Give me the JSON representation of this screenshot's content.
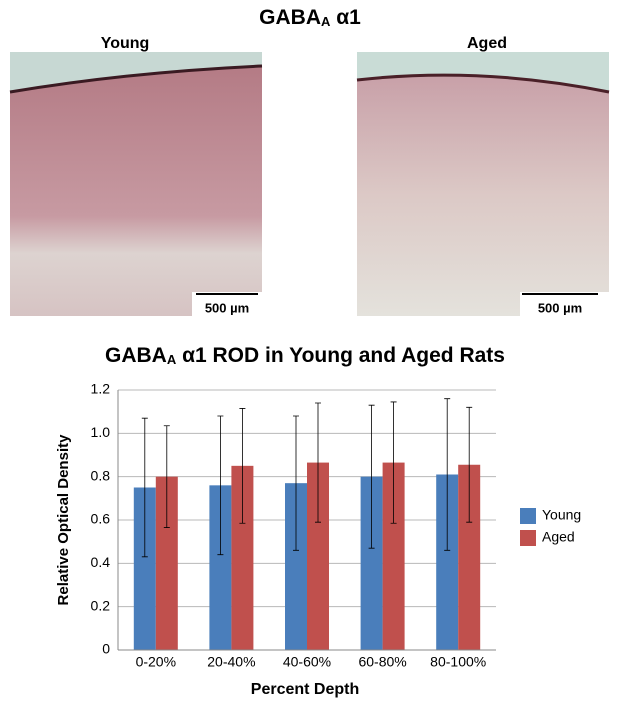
{
  "figure": {
    "title": {
      "main": "GABA",
      "sub": "A",
      "rest": "α1"
    },
    "panels": [
      {
        "label": "Young",
        "scale_bar": "500 µm"
      },
      {
        "label": "Aged",
        "scale_bar": "500 µm"
      }
    ]
  },
  "chart_data": {
    "type": "bar",
    "title": {
      "main": "GABA",
      "sub": "A",
      "rest": "α1 ROD in Young and Aged Rats"
    },
    "x_label": "Percent Depth",
    "y_label": "Relative Optical Density",
    "categories": [
      "0-20%",
      "20-40%",
      "40-60%",
      "60-80%",
      "80-100%"
    ],
    "series": [
      {
        "name": "Young",
        "color": "#4a7ebb",
        "values": [
          0.75,
          0.76,
          0.77,
          0.8,
          0.81
        ],
        "errors": [
          0.32,
          0.32,
          0.31,
          0.33,
          0.35
        ]
      },
      {
        "name": "Aged",
        "color": "#c0504d",
        "values": [
          0.8,
          0.85,
          0.865,
          0.865,
          0.855
        ],
        "errors": [
          0.235,
          0.265,
          0.275,
          0.28,
          0.265
        ]
      }
    ],
    "ylim": [
      0,
      1.2
    ],
    "yticks": [
      0,
      0.2,
      0.4,
      0.6,
      0.8,
      {
        "value": 1,
        "label": "1.0"
      },
      1.2
    ],
    "grid": true,
    "legend": "right"
  }
}
